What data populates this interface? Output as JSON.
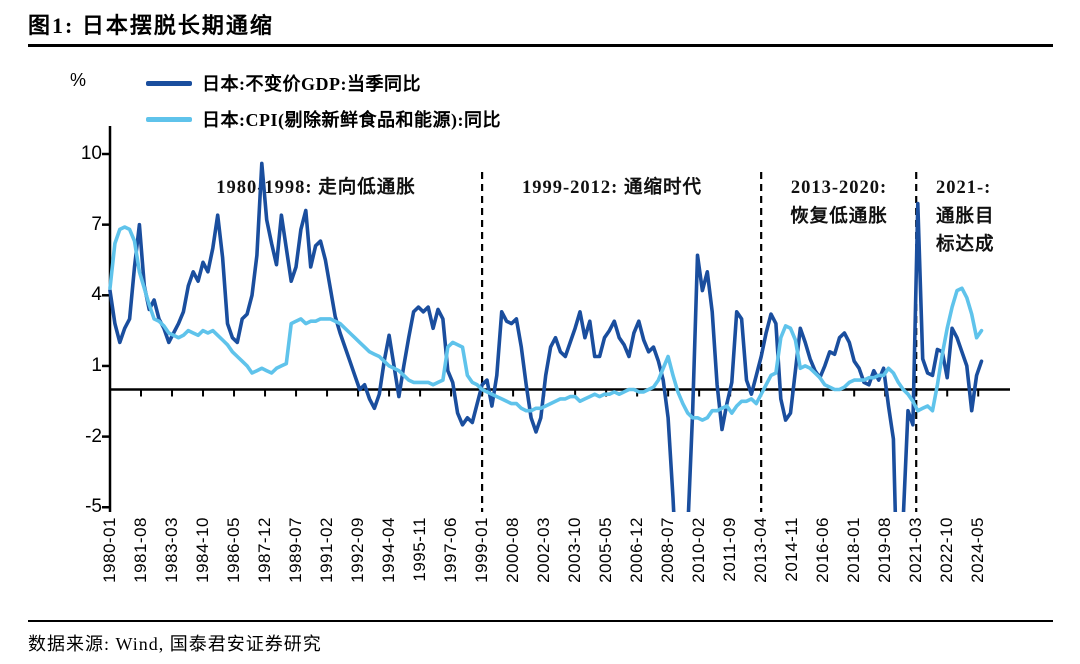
{
  "figure": {
    "title": "图1: 日本摆脱长期通缩",
    "source": "数据来源: Wind, 国泰君安证券研究"
  },
  "colors": {
    "gdp_line": "#1A4E9E",
    "cpi_line": "#5FC3EB",
    "axis": "#000000",
    "text": "#000000"
  },
  "chart_data": {
    "type": "line",
    "unit_label": "%",
    "grid": "off",
    "legend_position": "top-left",
    "y_ticks": [
      10,
      7,
      4,
      1,
      -2,
      -5
    ],
    "ylim": [
      -5.3,
      11.2
    ],
    "x_start": "1980-01",
    "x_end": "2024-09",
    "x_tick_labels": [
      "1980-01",
      "1981-08",
      "1983-03",
      "1984-10",
      "1986-05",
      "1987-12",
      "1989-07",
      "1991-02",
      "1992-09",
      "1994-04",
      "1995-11",
      "1997-06",
      "1999-01",
      "2000-08",
      "2002-03",
      "2003-10",
      "2005-05",
      "2006-12",
      "2008-07",
      "2010-02",
      "2011-09",
      "2013-04",
      "2014-11",
      "2016-06",
      "2018-01",
      "2019-08",
      "2021-03",
      "2022-10",
      "2024-05"
    ],
    "x_tick_months": [
      0,
      19,
      38,
      57,
      76,
      95,
      114,
      133,
      152,
      171,
      190,
      209,
      228,
      247,
      266,
      285,
      304,
      323,
      342,
      361,
      380,
      399,
      418,
      437,
      456,
      475,
      494,
      513,
      532
    ],
    "period_divider_months": [
      228,
      399,
      494
    ],
    "annotations": [
      {
        "text_lines": [
          "1980-1998: 走向低通胀"
        ]
      },
      {
        "text_lines": [
          "1999-2012: 通缩时代"
        ]
      },
      {
        "text_lines": [
          "2013-2020:",
          "恢复低通胀"
        ]
      },
      {
        "text_lines": [
          "2021-:",
          "通胀目",
          "标达成"
        ]
      }
    ],
    "series": [
      {
        "name": "日本:不变价GDP:当季同比",
        "color": "#1A4E9E",
        "start_month": 0,
        "step_months": 3,
        "values": [
          4.2,
          2.8,
          2.0,
          2.6,
          3.0,
          5.2,
          7.0,
          4.4,
          3.4,
          3.8,
          3.0,
          2.6,
          2.0,
          2.4,
          2.8,
          3.3,
          4.4,
          5.0,
          4.6,
          5.4,
          5.0,
          6.0,
          7.4,
          5.6,
          2.8,
          2.2,
          2.0,
          3.0,
          3.2,
          4.0,
          5.7,
          9.6,
          7.2,
          6.2,
          5.3,
          7.4,
          6.0,
          4.6,
          5.2,
          6.8,
          7.6,
          5.2,
          6.1,
          6.3,
          5.5,
          4.3,
          3.1,
          2.4,
          1.8,
          1.2,
          0.6,
          0.0,
          0.2,
          -0.4,
          -0.8,
          -0.2,
          1.2,
          2.3,
          1.0,
          -0.3,
          1.0,
          2.2,
          3.3,
          3.5,
          3.3,
          3.5,
          2.6,
          3.4,
          3.0,
          0.8,
          0.3,
          -1.0,
          -1.5,
          -1.2,
          -1.4,
          -0.6,
          0.2,
          0.4,
          -0.7,
          0.6,
          3.3,
          2.9,
          2.8,
          3.0,
          1.8,
          0.2,
          -1.2,
          -1.8,
          -1.2,
          0.6,
          1.8,
          2.2,
          1.6,
          1.4,
          2.0,
          2.6,
          3.3,
          2.2,
          2.9,
          1.4,
          1.4,
          2.2,
          2.5,
          2.9,
          2.2,
          1.9,
          1.4,
          2.4,
          2.9,
          2.1,
          1.6,
          1.8,
          1.2,
          0.4,
          -1.2,
          -4.6,
          -8.8,
          -9.2,
          -6.0,
          -1.0,
          5.7,
          4.2,
          5.0,
          3.3,
          0.2,
          -1.7,
          -0.6,
          0.3,
          3.3,
          3.0,
          0.4,
          -0.2,
          0.6,
          1.4,
          2.4,
          3.2,
          2.8,
          -0.4,
          -1.3,
          -1.0,
          0.8,
          2.6,
          2.0,
          1.3,
          0.8,
          0.5,
          1.0,
          1.6,
          1.5,
          2.2,
          2.4,
          2.0,
          1.2,
          0.9,
          0.3,
          0.2,
          0.8,
          0.4,
          0.9,
          -0.7,
          -2.1,
          -10.2,
          -5.5,
          -0.9,
          -1.5,
          7.9,
          1.3,
          0.7,
          0.6,
          1.7,
          1.6,
          0.5,
          2.6,
          2.2,
          1.6,
          1.0,
          -0.9,
          0.6,
          1.2
        ]
      },
      {
        "name": "日本:CPI(剔除新鲜食品和能源):同比",
        "color": "#5FC3EB",
        "start_month": 0,
        "step_months": 3,
        "values": [
          4.3,
          6.2,
          6.8,
          6.9,
          6.8,
          6.3,
          5.0,
          4.3,
          3.6,
          3.0,
          2.9,
          2.7,
          2.4,
          2.3,
          2.2,
          2.3,
          2.5,
          2.4,
          2.3,
          2.5,
          2.4,
          2.5,
          2.3,
          2.1,
          1.9,
          1.6,
          1.4,
          1.2,
          1.0,
          0.7,
          0.8,
          0.9,
          0.8,
          0.7,
          0.9,
          1.0,
          1.1,
          2.8,
          2.9,
          3.0,
          2.8,
          2.9,
          2.9,
          3.0,
          3.0,
          3.0,
          2.9,
          2.8,
          2.6,
          2.4,
          2.2,
          2.0,
          1.8,
          1.6,
          1.5,
          1.4,
          1.2,
          1.0,
          0.9,
          0.8,
          0.6,
          0.4,
          0.3,
          0.3,
          0.3,
          0.3,
          0.2,
          0.3,
          0.4,
          1.8,
          2.0,
          1.9,
          1.8,
          0.6,
          0.3,
          0.2,
          0.0,
          -0.1,
          -0.2,
          -0.3,
          -0.4,
          -0.5,
          -0.6,
          -0.6,
          -0.8,
          -0.9,
          -0.9,
          -0.8,
          -0.8,
          -0.7,
          -0.6,
          -0.5,
          -0.4,
          -0.4,
          -0.3,
          -0.3,
          -0.5,
          -0.4,
          -0.3,
          -0.2,
          -0.3,
          -0.2,
          -0.2,
          -0.1,
          -0.2,
          -0.1,
          0.0,
          0.0,
          -0.1,
          -0.1,
          0.0,
          0.1,
          0.4,
          0.9,
          1.4,
          0.6,
          -0.1,
          -0.6,
          -1.0,
          -1.2,
          -1.2,
          -1.3,
          -1.2,
          -0.9,
          -0.9,
          -0.8,
          -0.7,
          -1.0,
          -0.7,
          -0.5,
          -0.5,
          -0.4,
          -0.6,
          -0.2,
          0.2,
          0.6,
          0.7,
          2.2,
          2.7,
          2.6,
          2.1,
          0.9,
          1.0,
          0.9,
          0.7,
          0.5,
          0.2,
          0.1,
          0.0,
          0.0,
          0.1,
          0.3,
          0.4,
          0.4,
          0.4,
          0.5,
          0.5,
          0.6,
          0.6,
          0.9,
          0.7,
          0.3,
          0.0,
          -0.2,
          -0.5,
          -0.9,
          -0.8,
          -0.7,
          -0.9,
          0.2,
          1.5,
          2.6,
          3.5,
          4.2,
          4.3,
          3.9,
          3.2,
          2.2,
          2.5
        ]
      }
    ]
  }
}
